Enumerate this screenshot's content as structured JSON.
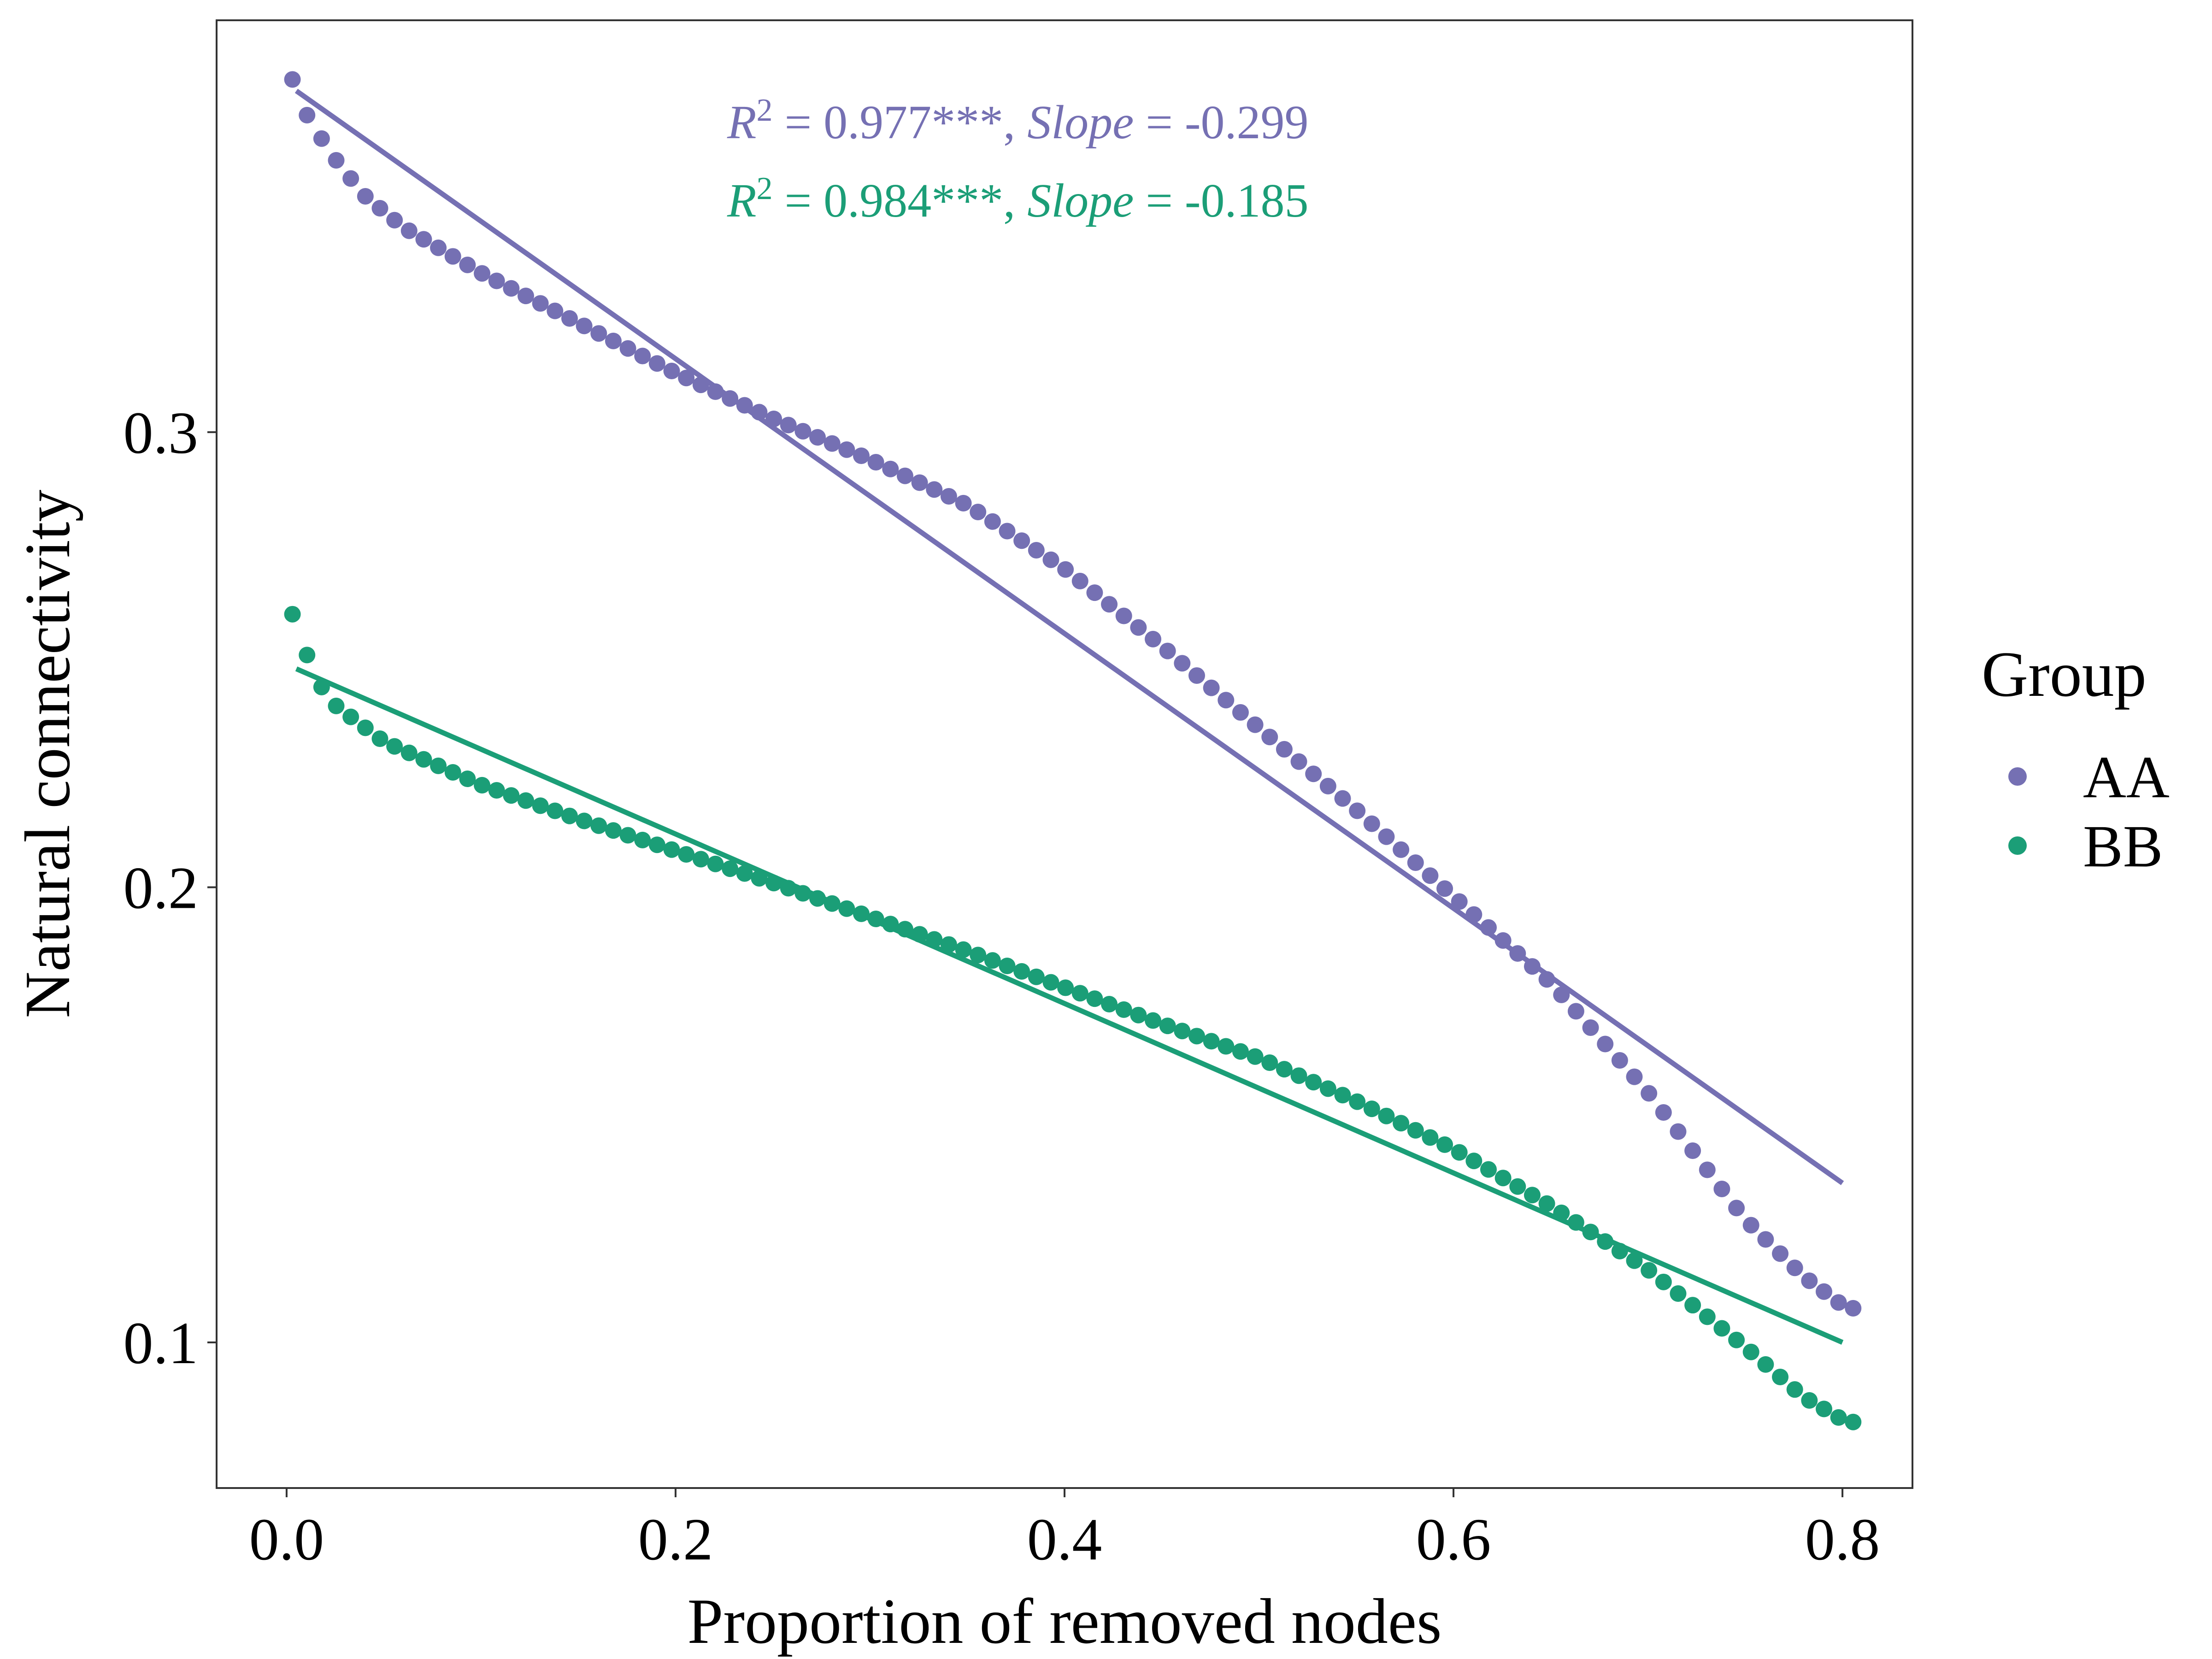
{
  "chart_data": {
    "type": "scatter",
    "xlabel": "Proportion of removed nodes",
    "ylabel": "Natural connectivity",
    "xlim": [
      -0.036,
      0.836
    ],
    "ylim": [
      0.068,
      0.3905
    ],
    "xticks": [
      0.0,
      0.2,
      0.4,
      0.6,
      0.8
    ],
    "xtick_labels": [
      "0.0",
      "0.2",
      "0.4",
      "0.6",
      "0.8"
    ],
    "yticks": [
      0.1,
      0.2,
      0.3
    ],
    "ytick_labels": [
      "0.1",
      "0.2",
      "0.3"
    ],
    "grid": false,
    "legend": {
      "title": "Group",
      "placement": "right",
      "entries": [
        {
          "label": "AA",
          "color": "#7570B3"
        },
        {
          "label": "BB",
          "color": "#1B9E77"
        }
      ]
    },
    "annotations": [
      {
        "r2_label": "R",
        "r2_sup": "2",
        "r2_value": " = 0.977***, ",
        "slope_label": "Slope",
        "slope_value": " = -0.299",
        "color": "#7570B3"
      },
      {
        "r2_label": "R",
        "r2_sup": "2",
        "r2_value": " = 0.984***, ",
        "slope_label": "Slope",
        "slope_value": " = -0.185",
        "color": "#1B9E77"
      }
    ],
    "series": [
      {
        "name": "AA",
        "color": "#7570B3",
        "x_start": 0.003,
        "x_step": 0.0075,
        "n": 108,
        "anchors": [
          [
            0.003,
            0.3775
          ],
          [
            0.01,
            0.37
          ],
          [
            0.018,
            0.3645
          ],
          [
            0.025,
            0.36
          ],
          [
            0.04,
            0.352
          ],
          [
            0.06,
            0.345
          ],
          [
            0.1,
            0.335
          ],
          [
            0.15,
            0.324
          ],
          [
            0.2,
            0.313
          ],
          [
            0.25,
            0.303
          ],
          [
            0.3,
            0.294
          ],
          [
            0.35,
            0.284
          ],
          [
            0.4,
            0.27
          ],
          [
            0.45,
            0.253
          ],
          [
            0.5,
            0.235
          ],
          [
            0.55,
            0.217
          ],
          [
            0.6,
            0.198
          ],
          [
            0.65,
            0.179
          ],
          [
            0.7,
            0.155
          ],
          [
            0.75,
            0.127
          ],
          [
            0.78,
            0.1145
          ],
          [
            0.802,
            0.1075
          ]
        ],
        "fit": {
          "x": [
            0.005,
            0.8
          ],
          "y": [
            0.375,
            0.135
          ]
        }
      },
      {
        "name": "BB",
        "color": "#1B9E77",
        "x_start": 0.003,
        "x_step": 0.0075,
        "n": 108,
        "anchors": [
          [
            0.003,
            0.26
          ],
          [
            0.01,
            0.2515
          ],
          [
            0.018,
            0.244
          ],
          [
            0.025,
            0.24
          ],
          [
            0.05,
            0.232
          ],
          [
            0.1,
            0.2225
          ],
          [
            0.15,
            0.215
          ],
          [
            0.2,
            0.208
          ],
          [
            0.25,
            0.201
          ],
          [
            0.3,
            0.1935
          ],
          [
            0.35,
            0.186
          ],
          [
            0.4,
            0.178
          ],
          [
            0.45,
            0.17
          ],
          [
            0.5,
            0.1625
          ],
          [
            0.55,
            0.153
          ],
          [
            0.6,
            0.1425
          ],
          [
            0.65,
            0.13
          ],
          [
            0.7,
            0.116
          ],
          [
            0.75,
            0.099
          ],
          [
            0.78,
            0.088
          ],
          [
            0.802,
            0.0825
          ]
        ],
        "fit": {
          "x": [
            0.005,
            0.8
          ],
          "y": [
            0.248,
            0.1
          ]
        }
      }
    ]
  }
}
